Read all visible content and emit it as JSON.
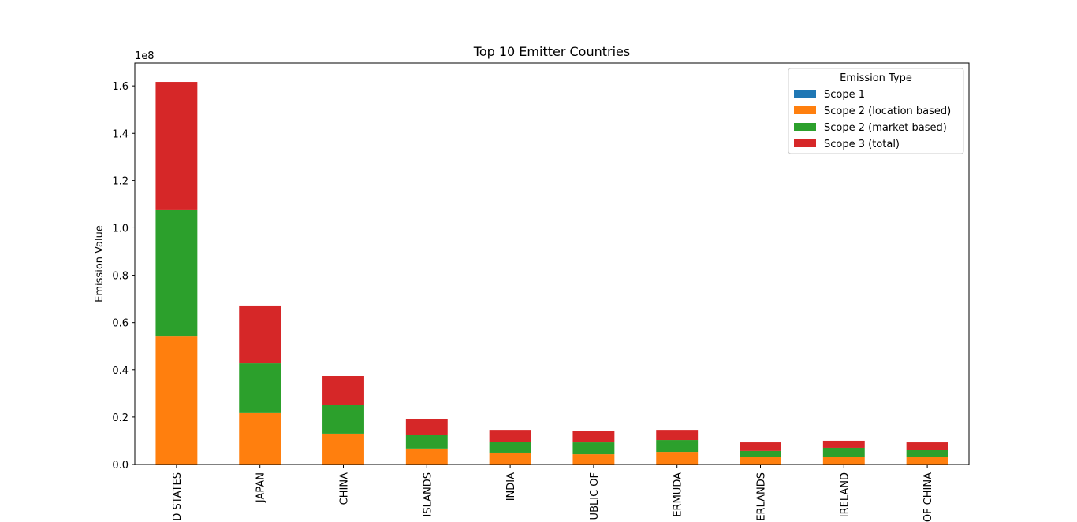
{
  "chart_data": {
    "type": "stacked_bar",
    "title": "Top 10 Emitter Countries",
    "y_label": "Emission Value",
    "y_offset_label": "1e8",
    "categories": [
      "D STATES",
      "JAPAN",
      "CHINA",
      "ISLANDS",
      "INDIA",
      "UBLIC OF",
      "ERMUDA",
      "ERLANDS",
      "IRELAND",
      "OF CHINA"
    ],
    "legend_title": "Emission Type",
    "legend": "upper right",
    "series": [
      {
        "name": "Scope 1",
        "color": "#1f77b4",
        "values": [
          0,
          0,
          0,
          0,
          0,
          0,
          0,
          0,
          0,
          0
        ]
      },
      {
        "name": "Scope 2 (location based)",
        "color": "#ff7f0e",
        "values": [
          0.542,
          0.22,
          0.13,
          0.067,
          0.05,
          0.043,
          0.053,
          0.03,
          0.033,
          0.033
        ]
      },
      {
        "name": "Scope 2 (market based)",
        "color": "#2ca02c",
        "values": [
          0.533,
          0.209,
          0.12,
          0.059,
          0.046,
          0.05,
          0.05,
          0.027,
          0.037,
          0.03
        ]
      },
      {
        "name": "Scope 3 (total)",
        "color": "#d62728",
        "values": [
          0.542,
          0.24,
          0.123,
          0.067,
          0.05,
          0.047,
          0.043,
          0.036,
          0.03,
          0.03
        ]
      }
    ],
    "ylim": [
      0,
      1.697
    ],
    "yticks": [
      {
        "value": 0,
        "label": "0.0"
      },
      0.2,
      0.4,
      0.6,
      0.8,
      {
        "value": 1,
        "label": "1.0"
      },
      1.2,
      1.4,
      1.6
    ]
  }
}
